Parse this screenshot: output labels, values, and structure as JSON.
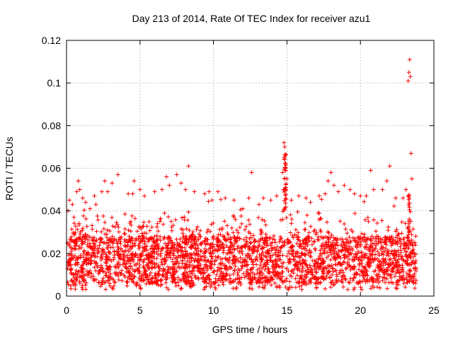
{
  "chart_data": {
    "type": "scatter",
    "title": "Day 213 of 2014, Rate Of TEC Index for receiver azu1",
    "xlabel": "GPS time / hours",
    "ylabel": "ROTI / TECUs",
    "xlim": [
      0,
      25
    ],
    "ylim": [
      0,
      0.12
    ],
    "x_ticks": [
      0,
      5,
      10,
      15,
      20,
      25
    ],
    "y_ticks": [
      0,
      0.02,
      0.04,
      0.06,
      0.08,
      0.1,
      0.12
    ],
    "x_tick_labels": [
      "0",
      "5",
      "10",
      "15",
      "20",
      "25"
    ],
    "y_tick_labels": [
      "0",
      "0.02",
      "0.04",
      "0.06",
      "0.08",
      "0.1",
      "0.12"
    ],
    "grid": true,
    "marker": "+",
    "color": "#ff0000",
    "series": [
      {
        "name": "ROTI",
        "description": "dense band of values roughly 0.005-0.045 TECU/s across 0-23.8 h",
        "points": [
          [
            0.1,
            0.04
          ],
          [
            0.2,
            0.045
          ],
          [
            0.4,
            0.043
          ],
          [
            0.5,
            0.037
          ],
          [
            0.7,
            0.049
          ],
          [
            0.8,
            0.054
          ],
          [
            0.9,
            0.05
          ],
          [
            1.1,
            0.046
          ],
          [
            1.3,
            0.044
          ],
          [
            1.6,
            0.041
          ],
          [
            1.9,
            0.047
          ],
          [
            2.0,
            0.043
          ],
          [
            2.4,
            0.049
          ],
          [
            2.6,
            0.054
          ],
          [
            2.8,
            0.049
          ],
          [
            3.1,
            0.053
          ],
          [
            3.5,
            0.057
          ],
          [
            4.2,
            0.048
          ],
          [
            4.5,
            0.048
          ],
          [
            4.6,
            0.054
          ],
          [
            5.0,
            0.05
          ],
          [
            5.3,
            0.047
          ],
          [
            6.0,
            0.049
          ],
          [
            6.5,
            0.05
          ],
          [
            6.8,
            0.056
          ],
          [
            7.0,
            0.052
          ],
          [
            7.5,
            0.057
          ],
          [
            7.8,
            0.053
          ],
          [
            8.1,
            0.05
          ],
          [
            8.3,
            0.061
          ],
          [
            8.7,
            0.049
          ],
          [
            9.4,
            0.048
          ],
          [
            9.7,
            0.049
          ],
          [
            9.9,
            0.045
          ],
          [
            10.3,
            0.049
          ],
          [
            10.8,
            0.046
          ],
          [
            11.4,
            0.045
          ],
          [
            12.0,
            0.041
          ],
          [
            12.4,
            0.046
          ],
          [
            12.6,
            0.058
          ],
          [
            13.1,
            0.043
          ],
          [
            13.4,
            0.046
          ],
          [
            13.9,
            0.045
          ],
          [
            14.3,
            0.047
          ],
          [
            14.7,
            0.058
          ],
          [
            14.8,
            0.072
          ],
          [
            14.85,
            0.07
          ],
          [
            14.9,
            0.06
          ],
          [
            15.0,
            0.055
          ],
          [
            15.3,
            0.045
          ],
          [
            15.8,
            0.047
          ],
          [
            16.3,
            0.046
          ],
          [
            16.6,
            0.044
          ],
          [
            17.2,
            0.047
          ],
          [
            17.6,
            0.048
          ],
          [
            17.8,
            0.054
          ],
          [
            18.0,
            0.058
          ],
          [
            18.2,
            0.052
          ],
          [
            18.5,
            0.049
          ],
          [
            18.9,
            0.052
          ],
          [
            19.3,
            0.05
          ],
          [
            19.6,
            0.048
          ],
          [
            20.0,
            0.047
          ],
          [
            20.4,
            0.047
          ],
          [
            20.7,
            0.059
          ],
          [
            20.9,
            0.05
          ],
          [
            21.5,
            0.05
          ],
          [
            21.8,
            0.054
          ],
          [
            22.0,
            0.061
          ],
          [
            22.4,
            0.046
          ],
          [
            22.9,
            0.046
          ],
          [
            23.1,
            0.05
          ],
          [
            23.25,
            0.101
          ],
          [
            23.3,
            0.105
          ],
          [
            23.35,
            0.111
          ],
          [
            23.4,
            0.103
          ],
          [
            23.45,
            0.067
          ],
          [
            23.5,
            0.055
          ]
        ]
      }
    ]
  }
}
